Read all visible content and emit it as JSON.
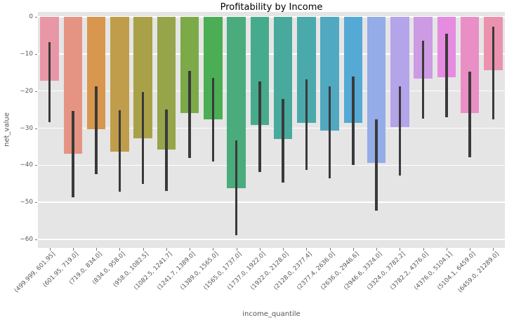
{
  "chart_data": {
    "type": "bar",
    "title": "Profitability by Income",
    "xlabel": "income_quantile",
    "ylabel": "net_value",
    "ylim": [
      -62,
      1.3
    ],
    "yticks": [
      0,
      -10,
      -20,
      -30,
      -40,
      -50,
      -60
    ],
    "ytick_labels": [
      "0",
      "−10",
      "−20",
      "−30",
      "−40",
      "−50",
      "−60"
    ],
    "grid": true,
    "legend": false,
    "plot_bg_color": "#e5e5e5",
    "grid_color": "#ffffff",
    "tick_color": "#555555",
    "error_bar_color": "#3a3a3a",
    "categories": [
      "(499.999, 601.95]",
      "(601.95, 719.0]",
      "(719.0, 834.0]",
      "(834.0, 958.0]",
      "(958.0, 1082.5]",
      "(1082.5, 1241.7]",
      "(1241.7, 1389.0]",
      "(1389.0, 1565.0]",
      "(1565.0, 1737.0]",
      "(1737.0, 1922.0]",
      "(1922.0, 2128.0]",
      "(2128.0, 2377.4]",
      "(2377.4, 2636.0]",
      "(2636.0, 2946.6]",
      "(2946.6, 3324.0]",
      "(3324.0, 3782.2]",
      "(3782.2, 4376.0]",
      "(4376.0, 5104.1]",
      "(5104.1, 6459.0]",
      "(6459.0, 21289.0]"
    ],
    "values": [
      -17.3,
      -36.9,
      -30.3,
      -36.4,
      -32.8,
      -35.8,
      -25.9,
      -27.6,
      -46.2,
      -29.2,
      -33.0,
      -28.6,
      -30.7,
      -28.6,
      -39.4,
      -29.7,
      -16.7,
      -16.3,
      -25.9,
      -14.4
    ],
    "ci_upper": [
      -6.8,
      -25.4,
      -18.8,
      -25.2,
      -20.3,
      -25.0,
      -14.6,
      -16.5,
      -33.3,
      -17.4,
      -22.2,
      -16.9,
      -18.8,
      -16.1,
      -27.7,
      -18.8,
      -6.4,
      -4.5,
      -14.8,
      -2.7
    ],
    "ci_lower": [
      -28.3,
      -48.7,
      -42.4,
      -47.2,
      -45.1,
      -47.0,
      -38.1,
      -39.0,
      -58.8,
      -41.9,
      -44.7,
      -41.3,
      -43.6,
      -40.0,
      -52.3,
      -42.8,
      -27.5,
      -27.1,
      -37.9,
      -27.7
    ],
    "bar_colors": [
      "#e897a7",
      "#e59484",
      "#d9964f",
      "#bf9d4a",
      "#a9a147",
      "#96a44a",
      "#7caa48",
      "#4bae55",
      "#4aab7d",
      "#46ab8c",
      "#48aa9c",
      "#4aa9ab",
      "#50a9c0",
      "#55a9d5",
      "#94ace7",
      "#b4a4e9",
      "#cc9be3",
      "#e58be0",
      "#e98fc6",
      "#ea92ae"
    ]
  }
}
